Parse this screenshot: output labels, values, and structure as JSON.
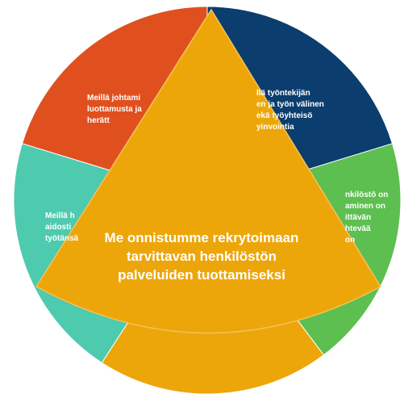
{
  "segments": [
    {
      "lines": [
        "Meillä johtami",
        "luottamusta ja",
        "herätt"
      ]
    },
    {
      "lines": [
        "llä työntekijän",
        "en ja työn välinen",
        "ekä työyhteisö",
        "yinvointia"
      ]
    },
    {
      "lines": [
        "nkilöstö on",
        "aminen on",
        "ittävän",
        "htevää",
        "on"
      ]
    },
    {
      "lines": [
        "Meillä h",
        "aidosti",
        "työtänsä"
      ]
    }
  ],
  "center": {
    "lines": [
      "Me onnistumme rekrytoimaan",
      "tarvittavan henkilöstön",
      "palveluiden tuottamiseksi"
    ]
  }
}
